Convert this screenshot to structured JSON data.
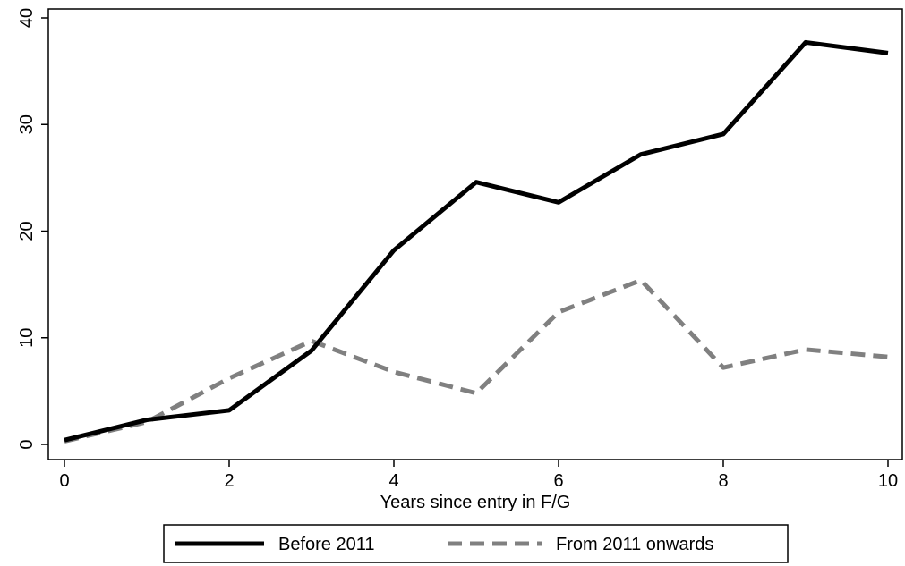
{
  "chart_data": {
    "type": "line",
    "x": [
      0,
      1,
      2,
      3,
      4,
      5,
      6,
      7,
      8,
      9,
      10
    ],
    "series": [
      {
        "name": "Before 2011",
        "values": [
          0.4,
          2.3,
          3.2,
          8.8,
          18.2,
          24.6,
          22.7,
          27.2,
          29.1,
          37.7,
          36.7
        ],
        "color": "#000000",
        "style": "solid"
      },
      {
        "name": "From 2011 onwards",
        "values": [
          0.3,
          2.1,
          6.2,
          9.7,
          6.8,
          4.8,
          12.4,
          15.4,
          7.2,
          8.9,
          8.2
        ],
        "color": "#808080",
        "style": "dashed"
      }
    ],
    "title": "",
    "xlabel": "Years since entry in F/G",
    "ylabel": "",
    "xlim": [
      0,
      10
    ],
    "ylim": [
      0,
      40
    ],
    "xticks": [
      "0",
      "2",
      "4",
      "6",
      "8",
      "10"
    ],
    "yticks": [
      "0",
      "10",
      "20",
      "30",
      "40"
    ],
    "grid": false,
    "legend_position": "bottom"
  }
}
